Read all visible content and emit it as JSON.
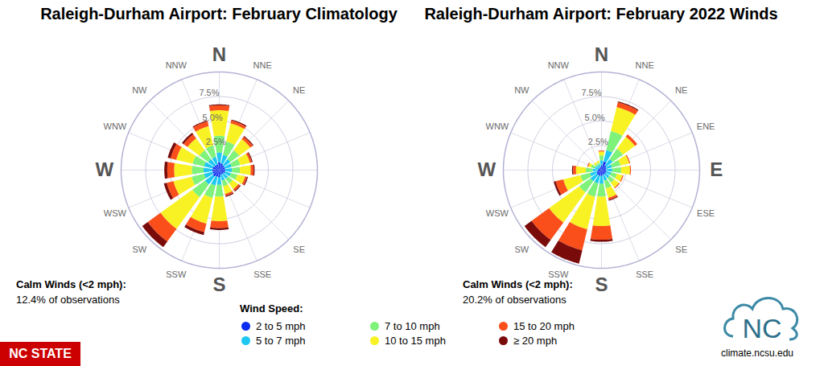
{
  "legend_title": "Wind Speed:",
  "footer": {
    "badge": "NC STATE",
    "logo": "NC",
    "url": "climate.ncsu.edu"
  },
  "chart_data": [
    {
      "type": "windrose",
      "title": "Raleigh-Durham Airport: February Climatology",
      "categories": [
        "N",
        "NNE",
        "NE",
        null,
        null,
        null,
        "SE",
        "SSE",
        "S",
        "SSW",
        "SW",
        "WSW",
        "W",
        "WNW",
        "NW",
        "NNW"
      ],
      "ylim": [
        0,
        10
      ],
      "yticks": [
        {
          "value": 2.5,
          "label": "2.5%"
        },
        {
          "value": 5,
          "label": "5.0%"
        },
        {
          "value": 7.5,
          "label": "7.5%"
        }
      ],
      "grid": true,
      "stacked": true,
      "legend": "bottom",
      "annotations": [
        "Calm Winds (<2 mph):",
        "12.4% of observations"
      ],
      "series": [
        {
          "name": "2 to 5 mph",
          "color": "#0b2bf0",
          "values": [
            0.8,
            0.7,
            0.6,
            0.6,
            0.6,
            0.6,
            0.5,
            0.5,
            0.7,
            0.7,
            0.8,
            0.7,
            0.7,
            0.7,
            0.6,
            0.6
          ]
        },
        {
          "name": "5 to 7 mph",
          "color": "#1ec8f2",
          "values": [
            1.0,
            0.9,
            0.8,
            0.7,
            0.7,
            0.6,
            0.6,
            0.6,
            0.8,
            0.9,
            1.0,
            0.9,
            0.9,
            0.9,
            0.8,
            0.8
          ]
        },
        {
          "name": "7 to 10 mph",
          "color": "#7ef27a",
          "values": [
            1.7,
            1.4,
            1.1,
            0.9,
            0.8,
            0.7,
            0.6,
            0.6,
            1.2,
            1.3,
            1.6,
            1.3,
            1.2,
            1.2,
            1.1,
            1.2
          ]
        },
        {
          "name": "10 to 15 mph",
          "color": "#f8f224",
          "values": [
            2.6,
            1.9,
            1.4,
            1.0,
            1.1,
            0.8,
            0.7,
            0.8,
            2.5,
            2.7,
            4.0,
            1.9,
            1.8,
            1.7,
            1.5,
            2.0
          ]
        },
        {
          "name": "15 to 20 mph",
          "color": "#fb4f1b",
          "values": [
            0.5,
            0.3,
            0.3,
            0.2,
            0.3,
            0.2,
            0.2,
            0.2,
            0.7,
            0.9,
            1.6,
            0.7,
            0.7,
            0.6,
            0.5,
            0.5
          ]
        },
        {
          "name": "≥ 20 mph",
          "color": "#7a0b0b",
          "values": [
            0.1,
            0.1,
            0.1,
            0.1,
            0.1,
            0.1,
            0.1,
            0.1,
            0.2,
            0.3,
            0.7,
            0.3,
            0.3,
            0.3,
            0.2,
            0.1
          ]
        }
      ]
    },
    {
      "type": "windrose",
      "title": "Raleigh-Durham Airport: February 2022 Winds",
      "categories": [
        "N",
        "NNE",
        "NE",
        "ENE",
        "E",
        "ESE",
        "SE",
        "SSE",
        "S",
        "SSW",
        "SW",
        "WSW",
        "W",
        "WNW",
        "NW",
        "NNW"
      ],
      "ylim": [
        0,
        10
      ],
      "yticks": [
        {
          "value": 2.5,
          "label": "2.5%"
        },
        {
          "value": 5,
          "label": "5.0%"
        },
        {
          "value": 7.5,
          "label": "7.5%"
        }
      ],
      "grid": true,
      "stacked": true,
      "annotations": [
        "Calm Winds (<2 mph):",
        "20.2% of observations"
      ],
      "series": [
        {
          "name": "2 to 5 mph",
          "color": "#0b2bf0",
          "values": [
            0.5,
            0.9,
            0.6,
            0.5,
            0.5,
            0.5,
            0.5,
            0.5,
            0.6,
            0.6,
            0.6,
            0.5,
            0.4,
            0.3,
            0.3,
            0.3
          ]
        },
        {
          "name": "5 to 7 mph",
          "color": "#1ec8f2",
          "values": [
            0.5,
            1.2,
            0.8,
            0.6,
            0.6,
            0.5,
            0.5,
            0.6,
            0.8,
            0.8,
            0.8,
            0.7,
            0.5,
            0.4,
            0.3,
            0.3
          ]
        },
        {
          "name": "7 to 10 mph",
          "color": "#7ef27a",
          "values": [
            0.5,
            2.0,
            1.3,
            0.9,
            0.9,
            0.6,
            0.6,
            0.8,
            1.3,
            1.4,
            1.4,
            1.0,
            0.7,
            0.4,
            0.2,
            0.2
          ]
        },
        {
          "name": "10 to 15 mph",
          "color": "#f8f224",
          "values": [
            0.4,
            2.5,
            1.5,
            0.9,
            0.9,
            0.6,
            0.6,
            1.0,
            3.0,
            3.4,
            3.8,
            1.8,
            1.0,
            0.3,
            0.2,
            0.2
          ]
        },
        {
          "name": "15 to 20 mph",
          "color": "#fb4f1b",
          "values": [
            0.1,
            0.5,
            0.3,
            0.1,
            0.1,
            0.1,
            0.1,
            0.2,
            1.4,
            2.2,
            2.2,
            0.8,
            0.3,
            0.1,
            0,
            0
          ]
        },
        {
          "name": "≥ 20 mph",
          "color": "#7a0b0b",
          "values": [
            0,
            0.1,
            0,
            0,
            0,
            0,
            0,
            0.1,
            0.2,
            1.4,
            0.9,
            0.2,
            0.1,
            0,
            0,
            0
          ]
        }
      ]
    }
  ]
}
